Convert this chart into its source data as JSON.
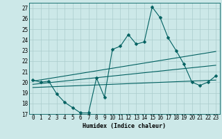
{
  "title": "",
  "xlabel": "Humidex (Indice chaleur)",
  "ylabel": "",
  "bg_color": "#cce8e8",
  "line_color": "#006060",
  "grid_color": "#aacccc",
  "ylim": [
    17,
    27.5
  ],
  "xlim": [
    -0.5,
    23.5
  ],
  "yticks": [
    17,
    18,
    19,
    20,
    21,
    22,
    23,
    24,
    25,
    26,
    27
  ],
  "xticks": [
    0,
    1,
    2,
    3,
    4,
    5,
    6,
    7,
    8,
    9,
    10,
    11,
    12,
    13,
    14,
    15,
    16,
    17,
    18,
    19,
    20,
    21,
    22,
    23
  ],
  "main_x": [
    0,
    1,
    2,
    3,
    4,
    5,
    6,
    7,
    8,
    9,
    10,
    11,
    12,
    13,
    14,
    15,
    16,
    17,
    18,
    19,
    20,
    21,
    22,
    23
  ],
  "main_y": [
    20.2,
    20.0,
    20.1,
    18.9,
    18.1,
    17.6,
    17.1,
    17.1,
    20.4,
    18.6,
    23.1,
    23.4,
    24.5,
    23.6,
    23.8,
    27.1,
    26.1,
    24.2,
    23.0,
    21.7,
    20.0,
    19.7,
    20.0,
    20.6
  ],
  "upper_line_x": [
    0,
    23
  ],
  "upper_line_y": [
    20.1,
    22.9
  ],
  "lower_line_x": [
    0,
    23
  ],
  "lower_line_y": [
    19.5,
    20.2
  ],
  "mid_line_x": [
    0,
    23
  ],
  "mid_line_y": [
    19.8,
    21.6
  ],
  "marker_size": 2.5,
  "font_size": 6,
  "tick_fontsize": 5.5
}
